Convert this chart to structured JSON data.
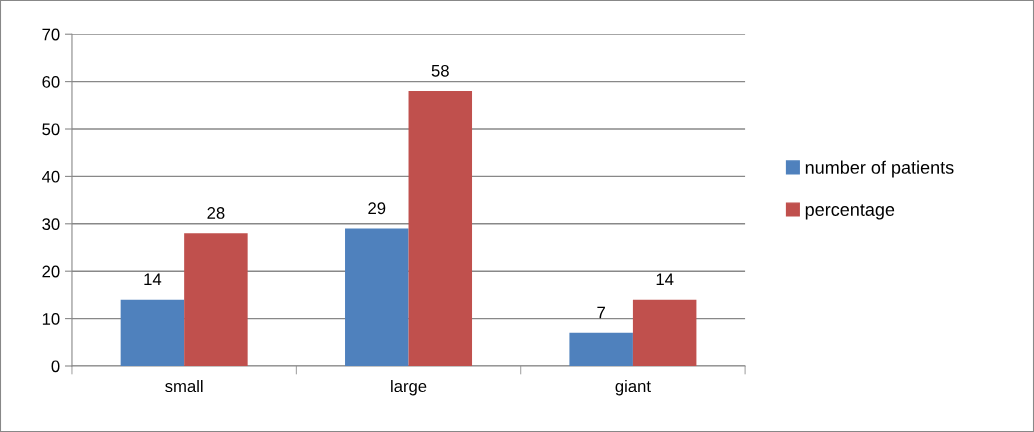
{
  "chart_data": {
    "type": "bar",
    "categories": [
      "small",
      "large",
      "giant"
    ],
    "series": [
      {
        "name": "number of patients",
        "color": "#4f81bd",
        "values": [
          14,
          29,
          7
        ]
      },
      {
        "name": "percentage",
        "color": "#c0504d",
        "values": [
          28,
          58,
          14
        ]
      }
    ],
    "ylim": [
      0,
      70
    ],
    "yticks": [
      0,
      10,
      20,
      30,
      40,
      50,
      60,
      70
    ],
    "grid": "y",
    "legend": "right",
    "data_labels": true
  }
}
